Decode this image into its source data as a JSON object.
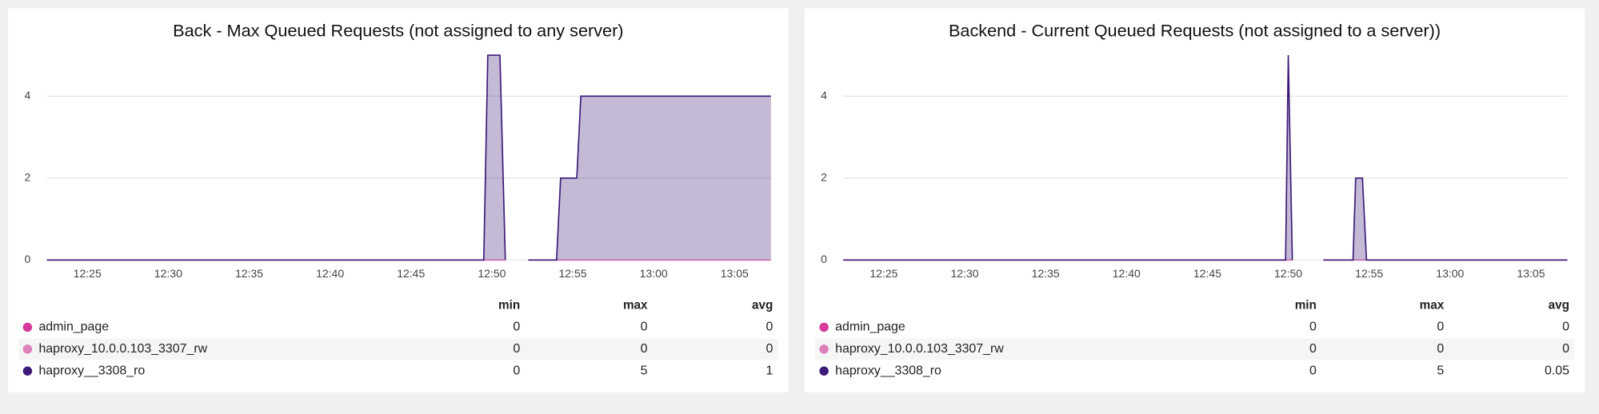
{
  "chart_data": [
    {
      "type": "area",
      "title": "Back - Max Queued Requests (not assigned to any server)",
      "x": [
        "12:22:30",
        "12:49:30",
        "12:49:45",
        "12:50:30",
        "12:50:50",
        "12:51:30",
        "12:52:15",
        "12:54:00",
        "12:54:15",
        "12:55:15",
        "12:55:30",
        "13:07:15"
      ],
      "xlim": [
        "12:22:30",
        "13:07:15"
      ],
      "xticks": [
        "12:25",
        "12:30",
        "12:35",
        "12:40",
        "12:45",
        "12:50",
        "12:55",
        "13:00",
        "13:05"
      ],
      "ylim": [
        0,
        5.1
      ],
      "yticks": [
        0,
        2,
        4
      ],
      "grid": true,
      "stat_headers": [
        "min",
        "max",
        "avg"
      ],
      "series": [
        {
          "name": "admin_page",
          "color": "#d63a9a",
          "values": [
            0,
            0,
            0,
            0,
            0,
            null,
            0,
            0,
            0,
            0,
            0,
            0
          ],
          "min": 0,
          "max": 0,
          "avg": 0
        },
        {
          "name": "haproxy_10.0.0.103_3307_rw",
          "color": "#dd80b9",
          "values": [
            0,
            0,
            0,
            0,
            0,
            null,
            0,
            0,
            0,
            0,
            0,
            0
          ],
          "min": 0,
          "max": 0,
          "avg": 0
        },
        {
          "name": "haproxy__3308_ro",
          "color": "#3b1a78",
          "values": [
            0,
            0,
            5,
            5,
            0,
            null,
            0,
            0,
            2,
            2,
            4,
            4
          ],
          "min": 0,
          "max": 5,
          "avg": 1
        }
      ]
    },
    {
      "type": "area",
      "title": "Backend - Current Queued Requests (not assigned to a server))",
      "x": [
        "12:22:30",
        "12:49:50",
        "12:50:00",
        "12:50:15",
        "12:51:00",
        "12:52:10",
        "12:54:00",
        "12:54:10",
        "12:54:35",
        "12:54:50",
        "13:07:15"
      ],
      "xlim": [
        "12:22:30",
        "13:07:15"
      ],
      "xticks": [
        "12:25",
        "12:30",
        "12:35",
        "12:40",
        "12:45",
        "12:50",
        "12:55",
        "13:00",
        "13:05"
      ],
      "ylim": [
        0,
        5.1
      ],
      "yticks": [
        0,
        2,
        4
      ],
      "grid": true,
      "stat_headers": [
        "min",
        "max",
        "avg"
      ],
      "series": [
        {
          "name": "admin_page",
          "color": "#d63a9a",
          "values": [
            0,
            0,
            0,
            0,
            null,
            0,
            0,
            0,
            0,
            0,
            0
          ],
          "min": 0,
          "max": 0,
          "avg": 0
        },
        {
          "name": "haproxy_10.0.0.103_3307_rw",
          "color": "#dd80b9",
          "values": [
            0,
            0,
            0,
            0,
            null,
            0,
            0,
            0,
            0,
            0,
            0
          ],
          "min": 0,
          "max": 0,
          "avg": 0
        },
        {
          "name": "haproxy__3308_ro",
          "color": "#3b1a78",
          "values": [
            0,
            0,
            5,
            0,
            null,
            0,
            0,
            2,
            2,
            0,
            0
          ],
          "min": 0,
          "max": 5,
          "avg": 0.05
        }
      ]
    }
  ]
}
